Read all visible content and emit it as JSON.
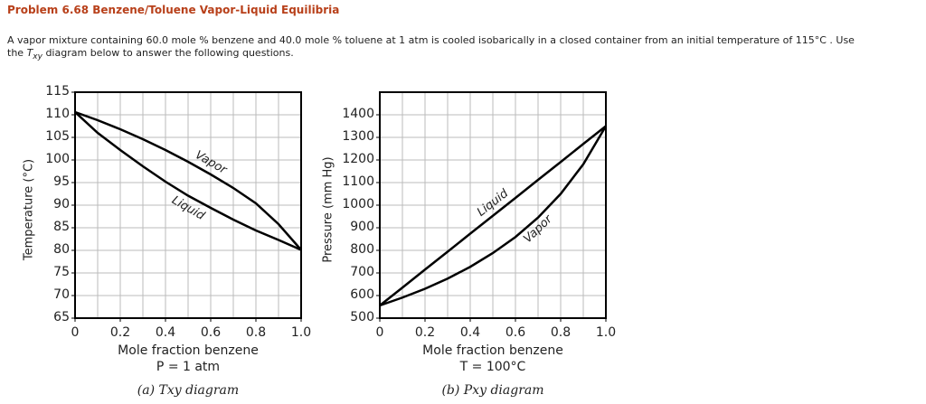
{
  "header": {
    "title": "Problem 6.68 Benzene/Toluene Vapor-Liquid Equilibria",
    "intro_line1": "A vapor mixture containing 60.0 mole % benzene and 40.0 mole % toluene at 1 atm is cooled isobarically in a closed container from an initial temperature of 115°C . Use",
    "intro_line2_start": "the",
    "intro_var": "T",
    "intro_sub": "xy",
    "intro_line2_end": "diagram below to answer the following questions."
  },
  "chart_data": [
    {
      "type": "line",
      "xlabel": "Mole fraction benzene",
      "subtitle": "P = 1 atm",
      "caption": "(a) Txy diagram",
      "ylabel": "Temperature (°C)",
      "x": [
        0,
        0.1,
        0.2,
        0.3,
        0.4,
        0.5,
        0.6,
        0.7,
        0.8,
        0.9,
        1
      ],
      "xlim": [
        0,
        1
      ],
      "xticks": [
        0,
        0.2,
        0.4,
        0.6,
        0.8,
        {
          "value": 1,
          "label": "1.0"
        }
      ],
      "ylim": [
        65,
        115
      ],
      "yticks": [
        65,
        70,
        75,
        80,
        85,
        90,
        95,
        100,
        105,
        110,
        115
      ],
      "grid": true,
      "series": [
        {
          "name": "Liquid",
          "color": "#000000",
          "values": [
            110.6,
            106,
            102.2,
            98.6,
            95.2,
            92.1,
            89.4,
            86.8,
            84.4,
            82.3,
            80.1
          ]
        },
        {
          "name": "Vapor",
          "color": "#000000",
          "values": [
            110.6,
            108.8,
            106.8,
            104.6,
            102.2,
            99.6,
            96.8,
            93.8,
            90.4,
            85.8,
            80.1
          ]
        }
      ]
    },
    {
      "type": "line",
      "xlabel": "Mole fraction benzene",
      "subtitle": "T = 100°C",
      "caption": "(b) Pxy diagram",
      "ylabel": "Pressure (mm Hg)",
      "x": [
        0,
        0.1,
        0.2,
        0.3,
        0.4,
        0.5,
        0.6,
        0.7,
        0.8,
        0.9,
        1
      ],
      "xlim": [
        0,
        1
      ],
      "xticks": [
        0,
        0.2,
        0.4,
        0.6,
        0.8,
        {
          "value": 1,
          "label": "1.0"
        }
      ],
      "ylim": [
        500,
        1500
      ],
      "yticks": [
        500,
        600,
        700,
        800,
        900,
        1000,
        1100,
        1200,
        1300,
        1400
      ],
      "grid": true,
      "series": [
        {
          "name": "Liquid",
          "color": "#000000",
          "values": [
            556,
            635,
            715,
            794,
            874,
            953,
            1032,
            1112,
            1191,
            1271,
            1350
          ]
        },
        {
          "name": "Vapor",
          "color": "#000000",
          "values": [
            556,
            591,
            630,
            675,
            727,
            788,
            859,
            945,
            1050,
            1181,
            1350
          ]
        }
      ]
    }
  ]
}
